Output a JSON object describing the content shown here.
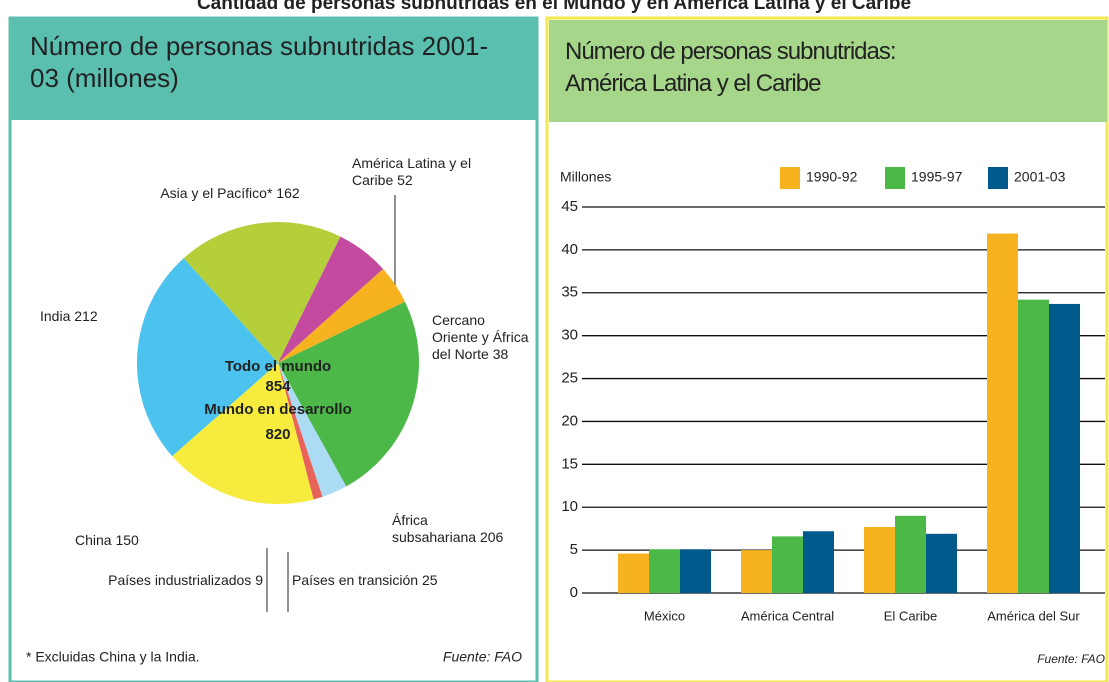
{
  "title": "Cantidad de personas subnutridas en el Mundo y en América Latina y el Caribe",
  "chart_data": [
    {
      "type": "pie",
      "title": "Número de personas subnutridas 2001-03 (millones)",
      "labels": [
        "Asia y el Pacífico*",
        "América Latina y el Caribe",
        "Cercano Oriente y África del Norte",
        "África subsahariana",
        "Países en transición",
        "Países industrializados",
        "China",
        "India"
      ],
      "values": [
        162,
        52,
        38,
        206,
        25,
        9,
        150,
        212
      ],
      "colors": [
        "#b5cf3a",
        "#c44aa0",
        "#f7b21f",
        "#4cb848",
        "#abdcf4",
        "#e8635a",
        "#f7ec3e",
        "#4cc2ee"
      ],
      "annotations": [
        {
          "label": "Todo el mundo",
          "value": 854
        },
        {
          "label": "Mundo en desarrollo",
          "value": 820
        }
      ],
      "note": "* Excluidas China y la India.",
      "source": "Fuente: FAO"
    },
    {
      "type": "bar",
      "title": "Número de personas subnutridas: América Latina y el Caribe",
      "y_label": "Millones",
      "categories": [
        "México",
        "América Central",
        "El Caribe",
        "América del Sur"
      ],
      "series": [
        {
          "name": "1990-92",
          "color": "#f7b21f",
          "values": [
            4.6,
            5.0,
            7.7,
            41.9
          ]
        },
        {
          "name": "1995-97",
          "color": "#4cb848",
          "values": [
            5.1,
            6.6,
            9.0,
            34.2
          ]
        },
        {
          "name": "2001-03",
          "color": "#005a8c",
          "values": [
            5.1,
            7.2,
            6.9,
            33.7
          ]
        }
      ],
      "ylim": [
        0,
        45
      ],
      "yticks": [
        0,
        5,
        10,
        15,
        20,
        25,
        30,
        35,
        40,
        45
      ],
      "grid": true,
      "legend": "top",
      "source": "Fuente: FAO"
    }
  ]
}
